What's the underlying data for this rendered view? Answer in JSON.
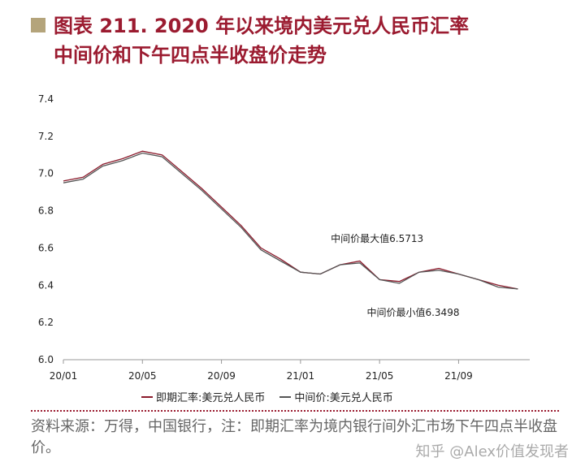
{
  "title_line1": "图表 211. 2020 年以来境内美元兑人民币汇率",
  "title_line2": "中间价和下午四点半收盘价走势",
  "source_text": "资料来源：万得，中国银行，注：即期汇率为境内银行间外汇市场下午四点半收盘价。",
  "watermark": "知乎 @Alex价值发现者",
  "colors": {
    "title": "#9b1b30",
    "series_spot": "#8b1a2b",
    "series_central": "#555555"
  },
  "chart_data": {
    "type": "line",
    "x_tick_labels": [
      "20/01",
      "20/05",
      "20/09",
      "21/01",
      "21/05",
      "21/09"
    ],
    "x_ticks": [
      "2020-01",
      "2020-05",
      "2020-09",
      "2021-01",
      "2021-05",
      "2021-09"
    ],
    "ylim": [
      6.0,
      7.4
    ],
    "y_ticks": [
      6.0,
      6.2,
      6.4,
      6.6,
      6.8,
      7.0,
      7.2,
      7.4
    ],
    "annotations": [
      {
        "text": "中间价最大值6.5713",
        "x": "2021-05",
        "y": 6.5713
      },
      {
        "text": "中间价最小值6.3498",
        "x": "2021-06",
        "y": 6.3498
      }
    ],
    "series": [
      {
        "name": "即期汇率:美元兑人民币",
        "x": [
          "2020-01",
          "2020-02",
          "2020-03",
          "2020-04",
          "2020-05",
          "2020-06",
          "2020-07",
          "2020-08",
          "2020-09",
          "2020-10",
          "2020-11",
          "2020-12",
          "2021-01",
          "2021-02",
          "2021-03",
          "2021-04",
          "2021-05",
          "2021-06",
          "2021-07",
          "2021-08",
          "2021-09",
          "2021-10",
          "2021-11",
          "2021-12"
        ],
        "values": [
          6.96,
          6.98,
          7.05,
          7.08,
          7.12,
          7.1,
          7.01,
          6.92,
          6.82,
          6.72,
          6.6,
          6.54,
          6.47,
          6.46,
          6.51,
          6.53,
          6.43,
          6.42,
          6.47,
          6.49,
          6.46,
          6.43,
          6.4,
          6.38
        ]
      },
      {
        "name": "中间价:美元兑人民币",
        "x": [
          "2020-01",
          "2020-02",
          "2020-03",
          "2020-04",
          "2020-05",
          "2020-06",
          "2020-07",
          "2020-08",
          "2020-09",
          "2020-10",
          "2020-11",
          "2020-12",
          "2021-01",
          "2021-02",
          "2021-03",
          "2021-04",
          "2021-05",
          "2021-06",
          "2021-07",
          "2021-08",
          "2021-09",
          "2021-10",
          "2021-11",
          "2021-12"
        ],
        "values": [
          6.95,
          6.97,
          7.04,
          7.07,
          7.11,
          7.09,
          7.0,
          6.91,
          6.81,
          6.71,
          6.59,
          6.53,
          6.47,
          6.46,
          6.51,
          6.52,
          6.43,
          6.41,
          6.47,
          6.48,
          6.46,
          6.43,
          6.39,
          6.38
        ]
      }
    ]
  }
}
